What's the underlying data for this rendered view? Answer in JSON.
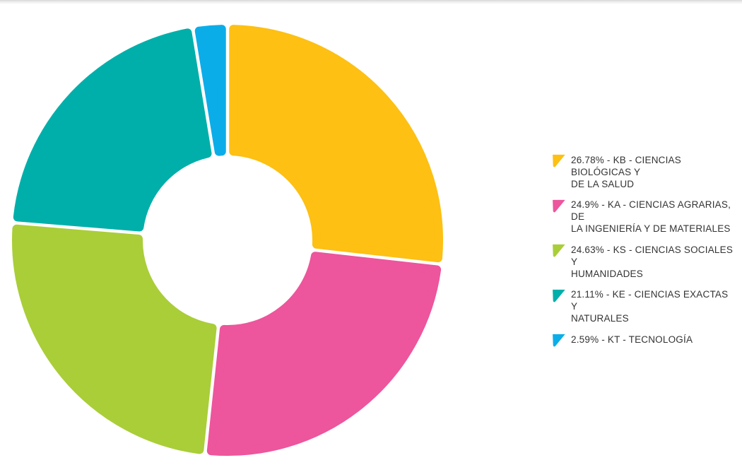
{
  "chart_data": {
    "type": "pie",
    "variant": "donut",
    "legend_position": "right",
    "start_angle_deg": 0,
    "direction": "clockwise",
    "inner_radius_ratio": 0.39,
    "background_color": "#ffffff",
    "slices": [
      {
        "value": 26.78,
        "unit": "%",
        "code": "KB",
        "category": "CIENCIAS BIOLÓGICAS Y DE LA SALUD",
        "color": "#fdc013",
        "legend_lines": [
          "26.78% - KB - CIENCIAS BIOLÓGICAS Y",
          "DE LA SALUD"
        ]
      },
      {
        "value": 24.9,
        "unit": "%",
        "code": "KA",
        "category": "CIENCIAS AGRARIAS, DE LA INGENIERÍA Y DE MATERIALES",
        "color": "#ed559c",
        "legend_lines": [
          "24.9% - KA - CIENCIAS AGRARIAS, DE",
          "LA INGENIERÍA Y DE MATERIALES"
        ]
      },
      {
        "value": 24.63,
        "unit": "%",
        "code": "KS",
        "category": "CIENCIAS SOCIALES Y HUMANIDADES",
        "color": "#a9ce38",
        "legend_lines": [
          "24.63% - KS - CIENCIAS SOCIALES Y",
          "HUMANIDADES"
        ]
      },
      {
        "value": 21.11,
        "unit": "%",
        "code": "KE",
        "category": "CIENCIAS EXACTAS Y NATURALES",
        "color": "#00afaa",
        "legend_lines": [
          "21.11% - KE - CIENCIAS EXACTAS Y",
          "NATURALES"
        ]
      },
      {
        "value": 2.59,
        "unit": "%",
        "code": "KT",
        "category": "TECNOLOGÍA",
        "color": "#0bade8",
        "legend_lines": [
          "2.59% - KT - TECNOLOGÍA"
        ]
      }
    ]
  },
  "layout_colors": {
    "legend_text": "#333333",
    "top_edge_shadow": "#d7d7d7"
  }
}
